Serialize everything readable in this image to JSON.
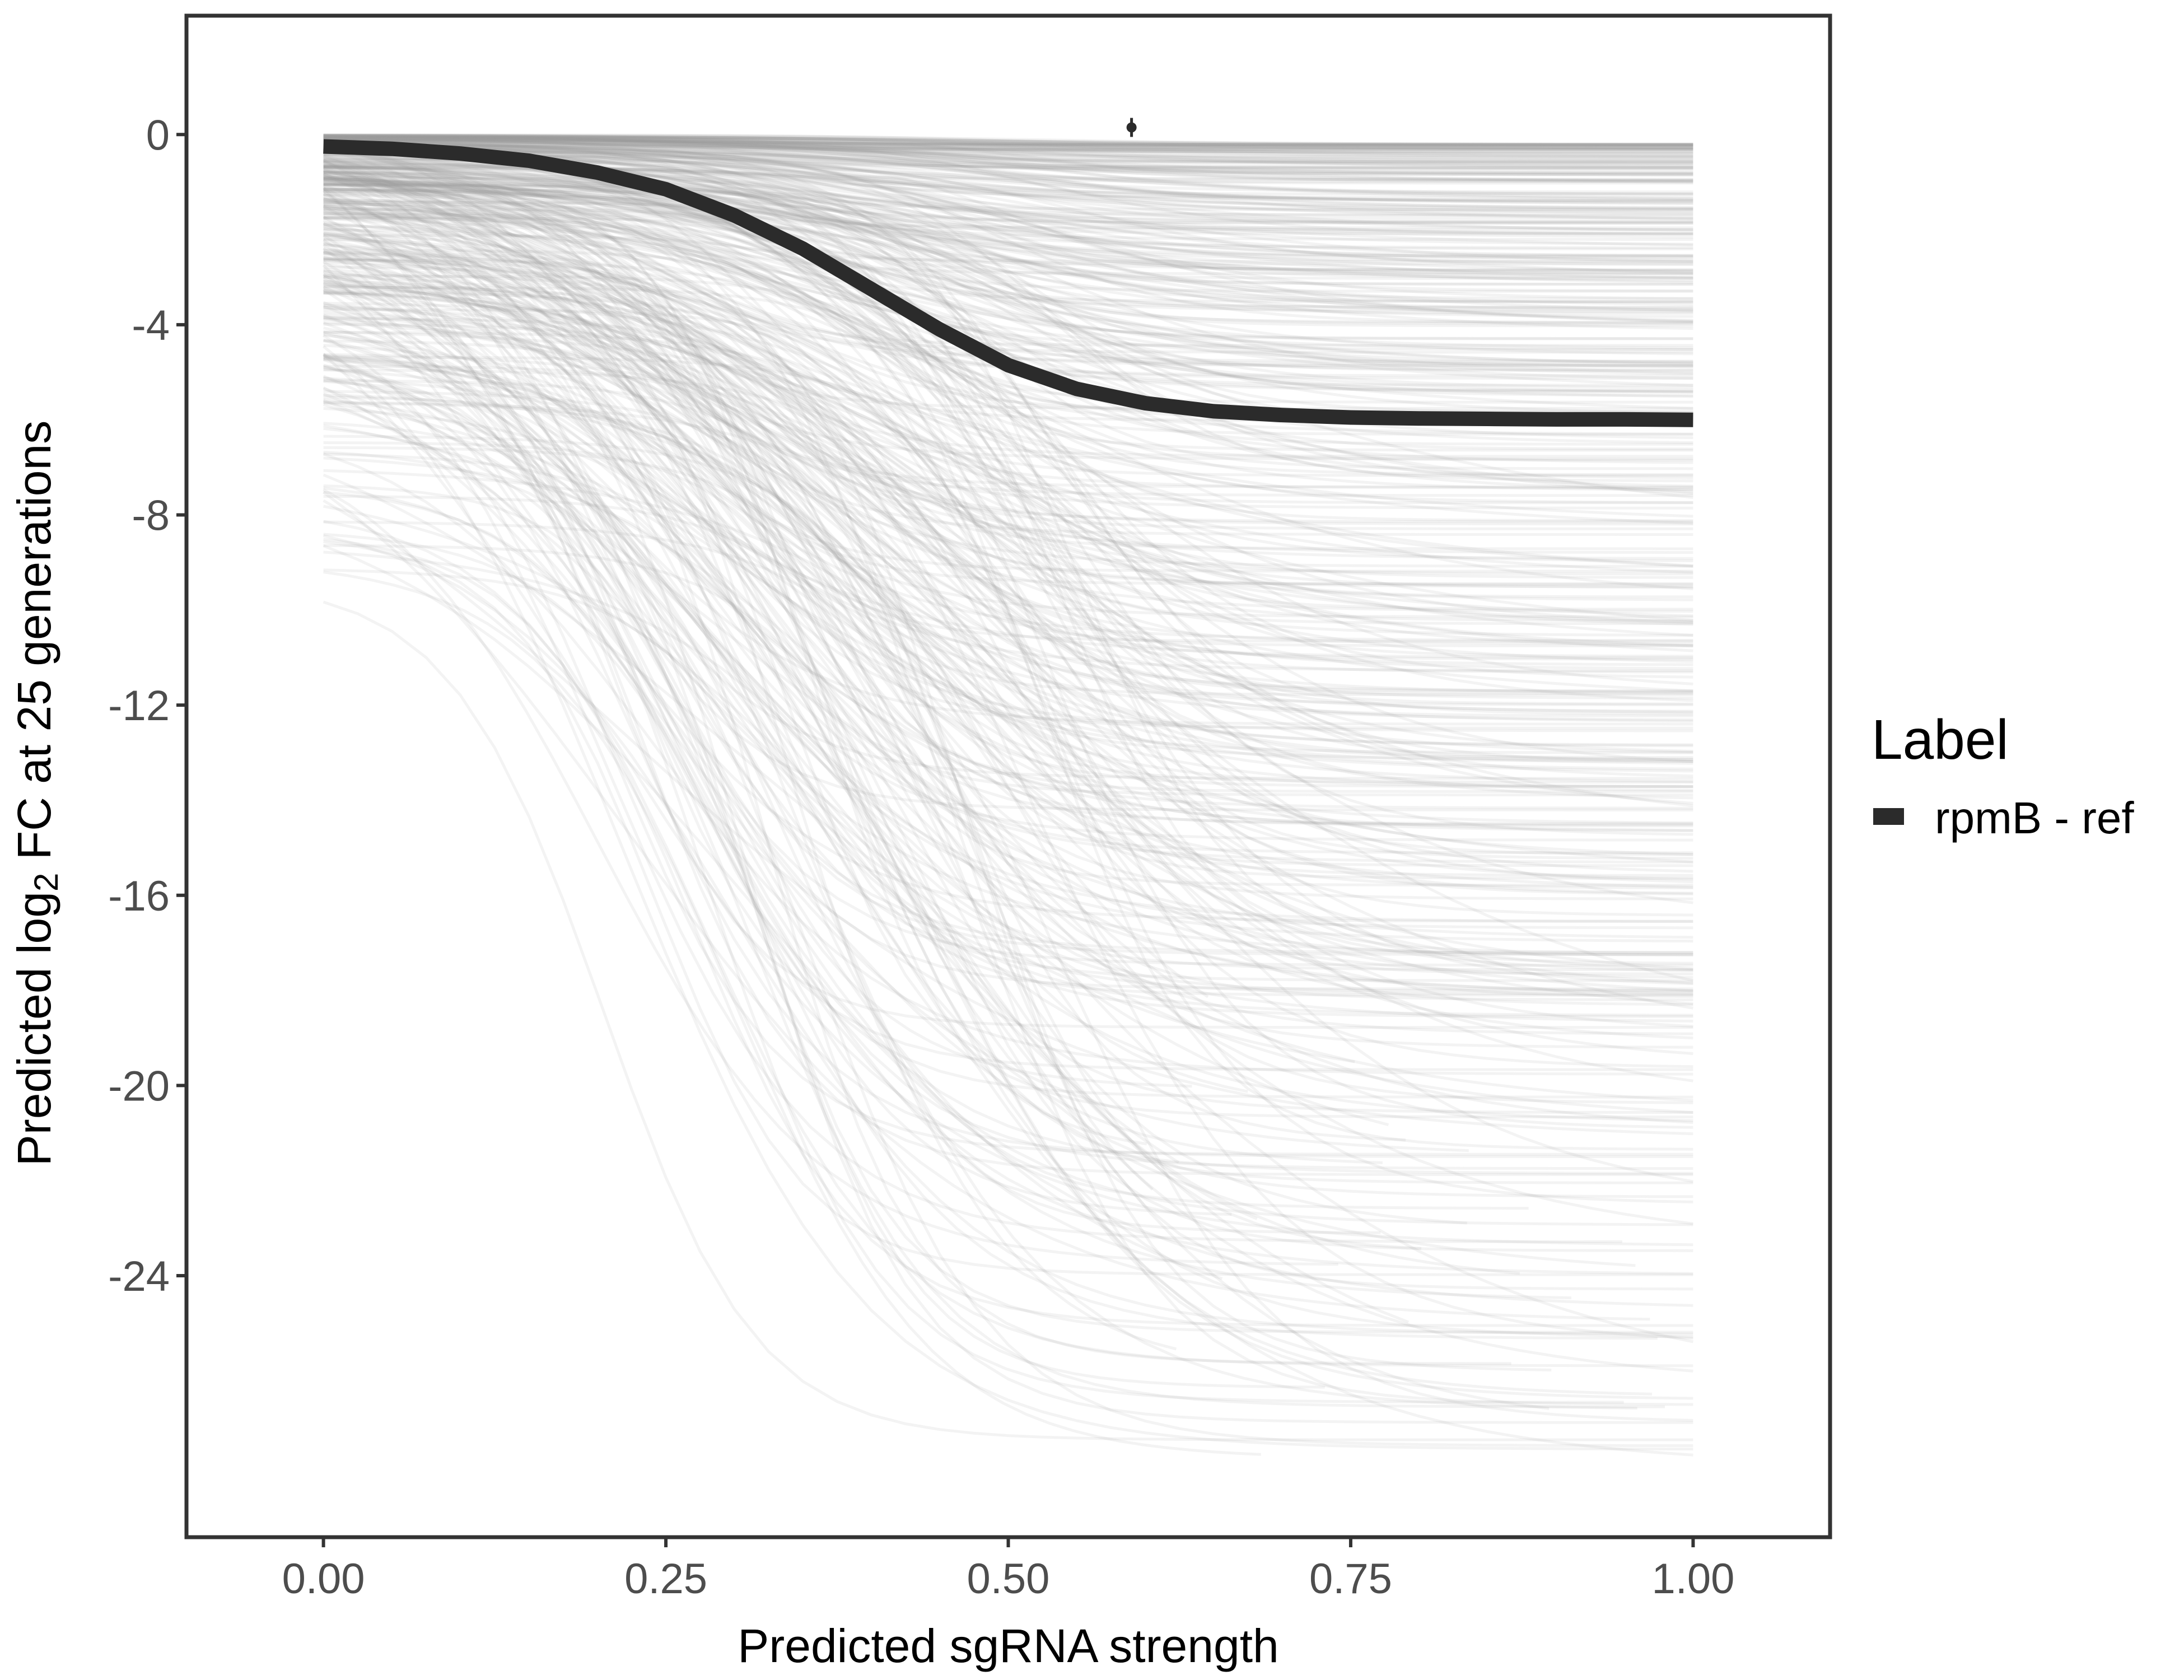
{
  "chart_data": {
    "type": "line",
    "title": "",
    "xlabel": "Predicted sgRNA strength",
    "ylabel_parts": {
      "before": "Predicted  log",
      "subscript": "2",
      "after": " FC at 25 generations"
    },
    "xlim": [
      -0.1,
      1.1
    ],
    "ylim": [
      -29.5,
      2.5
    ],
    "x_ticks": [
      0.0,
      0.25,
      0.5,
      0.75,
      1.0
    ],
    "x_tick_labels": [
      "0.00",
      "0.25",
      "0.50",
      "0.75",
      "1.00"
    ],
    "y_ticks": [
      0,
      -4,
      -8,
      -12,
      -16,
      -20,
      -24
    ],
    "y_tick_labels": [
      "0",
      "-4",
      "-8",
      "-12",
      "-16",
      "-20",
      "-24"
    ],
    "grid": false,
    "legend": {
      "title": "Label",
      "position": "right",
      "entries": [
        "rpmB - ref"
      ]
    },
    "highlight_series": {
      "name": "rpmB - ref",
      "color": "#2b2b2b",
      "x": [
        0.0,
        0.05,
        0.1,
        0.15,
        0.2,
        0.25,
        0.3,
        0.35,
        0.4,
        0.45,
        0.5,
        0.55,
        0.6,
        0.65,
        0.7,
        0.75,
        0.8,
        0.85,
        0.9,
        0.95,
        1.0
      ],
      "y": [
        -0.25,
        -0.3,
        -0.4,
        -0.55,
        -0.8,
        -1.15,
        -1.7,
        -2.4,
        -3.25,
        -4.1,
        -4.85,
        -5.35,
        -5.65,
        -5.82,
        -5.9,
        -5.95,
        -5.97,
        -5.98,
        -5.99,
        -5.99,
        -6.0
      ]
    },
    "point_estimate": {
      "x": 0.59,
      "y": 0.15,
      "err_low": -0.05,
      "err_high": 0.35,
      "color": "#2b2b2b"
    },
    "background_series": {
      "description_count": 500,
      "color": "#9a9a9a",
      "y_range_at_x1": [
        -28.0,
        -0.2
      ],
      "x_end_range": [
        0.6,
        1.0
      ]
    }
  }
}
